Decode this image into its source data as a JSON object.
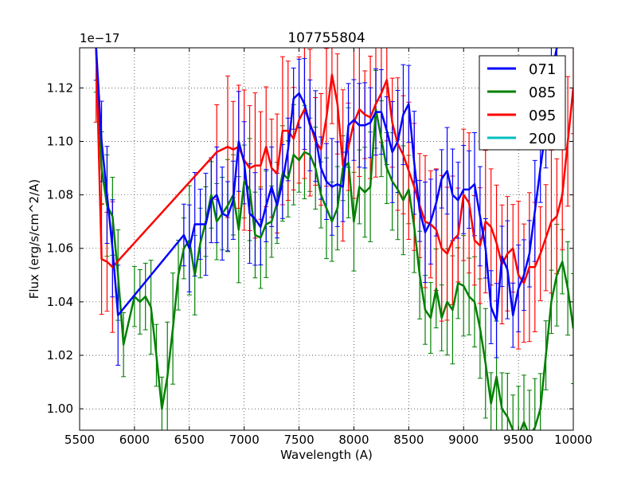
{
  "chart_data": {
    "type": "line",
    "title": "107755804",
    "xlabel": "Wavelength (A)",
    "ylabel": "Flux (erg/s/cm^2/A)",
    "offset_label": "1e−17",
    "xlim": [
      5500,
      10000
    ],
    "ylim": [
      0.992,
      1.135
    ],
    "grid": true,
    "legend_position": "top-right",
    "xticks": [
      5500,
      6000,
      6500,
      7000,
      7500,
      8000,
      8500,
      9000,
      9500,
      10000
    ],
    "xtick_labels": [
      "5500",
      "6000",
      "6500",
      "7000",
      "7500",
      "8000",
      "8500",
      "9000",
      "9500",
      "10000"
    ],
    "yticks": [
      1.0,
      1.02,
      1.04,
      1.06,
      1.08,
      1.1,
      1.12
    ],
    "ytick_labels": [
      "1.00",
      "1.02",
      "1.04",
      "1.06",
      "1.08",
      "1.10",
      "1.12"
    ],
    "series": [
      {
        "name": "071",
        "color": "#0000ff",
        "x": [
          5650,
          5700,
          5750,
          5800,
          5850,
          6450,
          6500,
          6550,
          6600,
          6650,
          6700,
          6750,
          6800,
          6850,
          6900,
          6950,
          7000,
          7050,
          7100,
          7150,
          7200,
          7250,
          7300,
          7350,
          7400,
          7450,
          7500,
          7550,
          7600,
          7650,
          7700,
          7750,
          7800,
          7850,
          7900,
          7950,
          8000,
          8050,
          8100,
          8150,
          8200,
          8250,
          8300,
          8350,
          8400,
          8450,
          8500,
          8550,
          8600,
          8650,
          8700,
          8750,
          8800,
          8850,
          8900,
          8950,
          9000,
          9050,
          9100,
          9150,
          9200,
          9250,
          9300,
          9350,
          9400,
          9450,
          9500,
          9550,
          9600,
          9650,
          9700,
          9750,
          9800,
          9850
        ],
        "y": [
          1.135,
          1.1,
          1.08,
          1.06,
          1.035,
          1.065,
          1.06,
          1.069,
          1.069,
          1.069,
          1.078,
          1.08,
          1.073,
          1.072,
          1.078,
          1.1,
          1.092,
          1.073,
          1.071,
          1.068,
          1.076,
          1.083,
          1.076,
          1.085,
          1.097,
          1.116,
          1.118,
          1.114,
          1.106,
          1.102,
          1.09,
          1.085,
          1.083,
          1.084,
          1.083,
          1.106,
          1.108,
          1.106,
          1.106,
          1.107,
          1.111,
          1.111,
          1.104,
          1.096,
          1.1,
          1.11,
          1.114,
          1.092,
          1.074,
          1.066,
          1.07,
          1.077,
          1.086,
          1.089,
          1.08,
          1.078,
          1.082,
          1.082,
          1.084,
          1.072,
          1.06,
          1.038,
          1.033,
          1.057,
          1.052,
          1.035,
          1.045,
          1.05,
          1.058,
          1.074,
          1.09,
          1.105,
          1.125,
          1.135
        ]
      },
      {
        "name": "085",
        "color": "#008000",
        "x": [
          5650,
          5700,
          5750,
          5800,
          5850,
          5900,
          6000,
          6050,
          6100,
          6150,
          6200,
          6250,
          6300,
          6350,
          6400,
          6450,
          6500,
          6550,
          6600,
          6650,
          6700,
          6750,
          6800,
          6850,
          6900,
          6950,
          7000,
          7050,
          7100,
          7150,
          7200,
          7250,
          7300,
          7350,
          7400,
          7450,
          7500,
          7550,
          7600,
          7650,
          7700,
          7750,
          7800,
          7850,
          7900,
          7950,
          8000,
          8050,
          8100,
          8150,
          8200,
          8250,
          8300,
          8350,
          8400,
          8450,
          8500,
          8550,
          8600,
          8650,
          8700,
          8750,
          8800,
          8850,
          8900,
          8950,
          9000,
          9050,
          9100,
          9150,
          9200,
          9250,
          9300,
          9350,
          9400,
          9450,
          9500,
          9550,
          9600,
          9650,
          9700,
          9750,
          9800,
          9850,
          9900,
          9950,
          10000
        ],
        "y": [
          1.135,
          1.09,
          1.076,
          1.072,
          1.05,
          1.024,
          1.042,
          1.04,
          1.042,
          1.038,
          1.02,
          1.0,
          1.012,
          1.03,
          1.05,
          1.06,
          1.063,
          1.05,
          1.062,
          1.07,
          1.08,
          1.07,
          1.073,
          1.076,
          1.08,
          1.067,
          1.085,
          1.082,
          1.065,
          1.064,
          1.069,
          1.07,
          1.077,
          1.088,
          1.086,
          1.095,
          1.093,
          1.096,
          1.095,
          1.09,
          1.08,
          1.075,
          1.07,
          1.075,
          1.09,
          1.092,
          1.07,
          1.083,
          1.081,
          1.083,
          1.112,
          1.101,
          1.09,
          1.085,
          1.082,
          1.078,
          1.082,
          1.068,
          1.05,
          1.037,
          1.034,
          1.045,
          1.034,
          1.04,
          1.037,
          1.047,
          1.046,
          1.042,
          1.04,
          1.03,
          1.017,
          1.002,
          1.012,
          1.0,
          0.997,
          0.992,
          0.99,
          0.995,
          0.99,
          0.993,
          1.0,
          1.02,
          1.04,
          1.05,
          1.055,
          1.045,
          1.03
        ]
      },
      {
        "name": "095",
        "color": "#ff0000",
        "x": [
          5650,
          5700,
          5750,
          5800,
          6750,
          6850,
          6900,
          6950,
          7000,
          7050,
          7100,
          7150,
          7200,
          7250,
          7300,
          7350,
          7400,
          7450,
          7500,
          7550,
          7600,
          7650,
          7700,
          7750,
          7800,
          7850,
          7900,
          7950,
          8000,
          8050,
          8100,
          8150,
          8200,
          8250,
          8300,
          8350,
          8400,
          8450,
          8500,
          8550,
          8600,
          8650,
          8700,
          8750,
          8800,
          8850,
          8900,
          8950,
          9000,
          9050,
          9100,
          9150,
          9200,
          9250,
          9300,
          9350,
          9400,
          9450,
          9500,
          9550,
          9600,
          9650,
          9700,
          9750,
          9800,
          9850,
          9900,
          9950,
          10000
        ],
        "y": [
          1.135,
          1.056,
          1.055,
          1.053,
          1.096,
          1.098,
          1.097,
          1.098,
          1.093,
          1.09,
          1.091,
          1.091,
          1.098,
          1.09,
          1.088,
          1.104,
          1.104,
          1.101,
          1.108,
          1.112,
          1.107,
          1.1,
          1.097,
          1.109,
          1.125,
          1.114,
          1.091,
          1.098,
          1.107,
          1.112,
          1.11,
          1.109,
          1.114,
          1.118,
          1.123,
          1.107,
          1.099,
          1.095,
          1.089,
          1.083,
          1.076,
          1.07,
          1.069,
          1.067,
          1.06,
          1.058,
          1.063,
          1.065,
          1.08,
          1.077,
          1.063,
          1.061,
          1.07,
          1.068,
          1.062,
          1.054,
          1.058,
          1.06,
          1.05,
          1.047,
          1.053,
          1.053,
          1.058,
          1.064,
          1.07,
          1.072,
          1.08,
          1.1,
          1.12
        ]
      },
      {
        "name": "200",
        "color": "#00bfbf",
        "x": [],
        "y": []
      }
    ]
  }
}
